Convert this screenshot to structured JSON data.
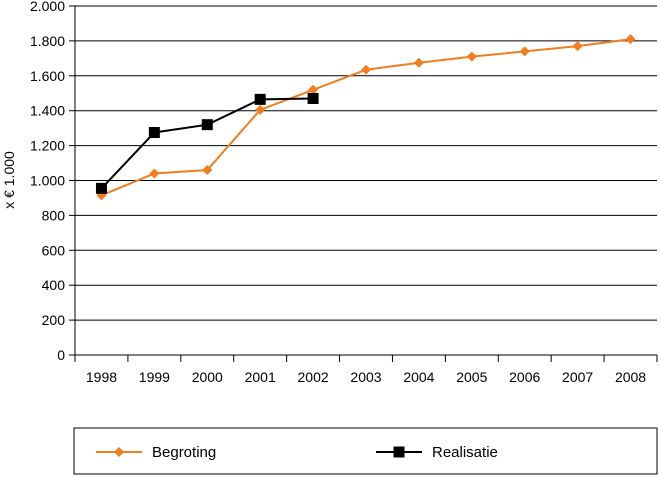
{
  "chart_data": {
    "type": "line",
    "title": "",
    "xlabel": "",
    "ylabel": "x € 1.000",
    "ylim": [
      0,
      2000
    ],
    "y_ticks": [
      0,
      200,
      400,
      600,
      800,
      1000,
      1200,
      1400,
      1600,
      1800,
      2000
    ],
    "y_tick_labels": [
      "0",
      "200",
      "400",
      "600",
      "800",
      "1.000",
      "1.200",
      "1.400",
      "1.600",
      "1.800",
      "2.000"
    ],
    "categories": [
      "1998",
      "1999",
      "2000",
      "2001",
      "2002",
      "2003",
      "2004",
      "2005",
      "2006",
      "2007",
      "2008"
    ],
    "grid": true,
    "legend_position": "bottom",
    "series": [
      {
        "name": "Begroting",
        "color": "#f07d1e",
        "marker": "diamond",
        "values": [
          915,
          1040,
          1060,
          1405,
          1520,
          1635,
          1675,
          1710,
          1740,
          1770,
          1810
        ]
      },
      {
        "name": "Realisatie",
        "color": "#000000",
        "marker": "square",
        "values": [
          955,
          1275,
          1320,
          1465,
          1470,
          null,
          null,
          null,
          null,
          null,
          null
        ]
      }
    ]
  }
}
